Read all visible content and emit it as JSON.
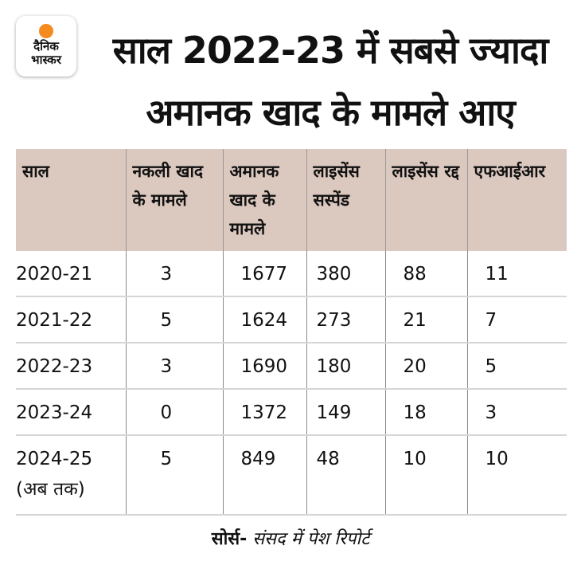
{
  "logo": {
    "text_line1": "दैनिक",
    "text_line2": "भास्कर",
    "sun_color": "#f58a1f"
  },
  "title": {
    "line1": "साल 2022-23 में सबसे ज्यादा",
    "line2": "अमानक खाद के मामले आए"
  },
  "chart_data": {
    "type": "table",
    "title": "साल 2022-23 में सबसे ज्यादा अमानक खाद के मामले आए",
    "columns": [
      "साल",
      "नकली खाद के मामले",
      "अमानक खाद के मामले",
      "लाइसेंस सस्पेंड",
      "लाइसेंस रद्द",
      "एफआईआर"
    ],
    "rows": [
      [
        "2020-21",
        "3",
        "1677",
        "380",
        "88",
        "11"
      ],
      [
        "2021-22",
        "5",
        "1624",
        "273",
        "21",
        "7"
      ],
      [
        "2022-23",
        "3",
        "1690",
        "180",
        "20",
        "5"
      ],
      [
        "2023-24",
        "0",
        "1372",
        "149",
        "18",
        "3"
      ],
      [
        "2024-25 (अब तक)",
        "5",
        "849",
        "48",
        "10",
        "10"
      ]
    ],
    "header_color": "#dbc8bf"
  },
  "source": {
    "label": "सोर्स-",
    "text": "संसद में पेश रिपोर्ट"
  }
}
